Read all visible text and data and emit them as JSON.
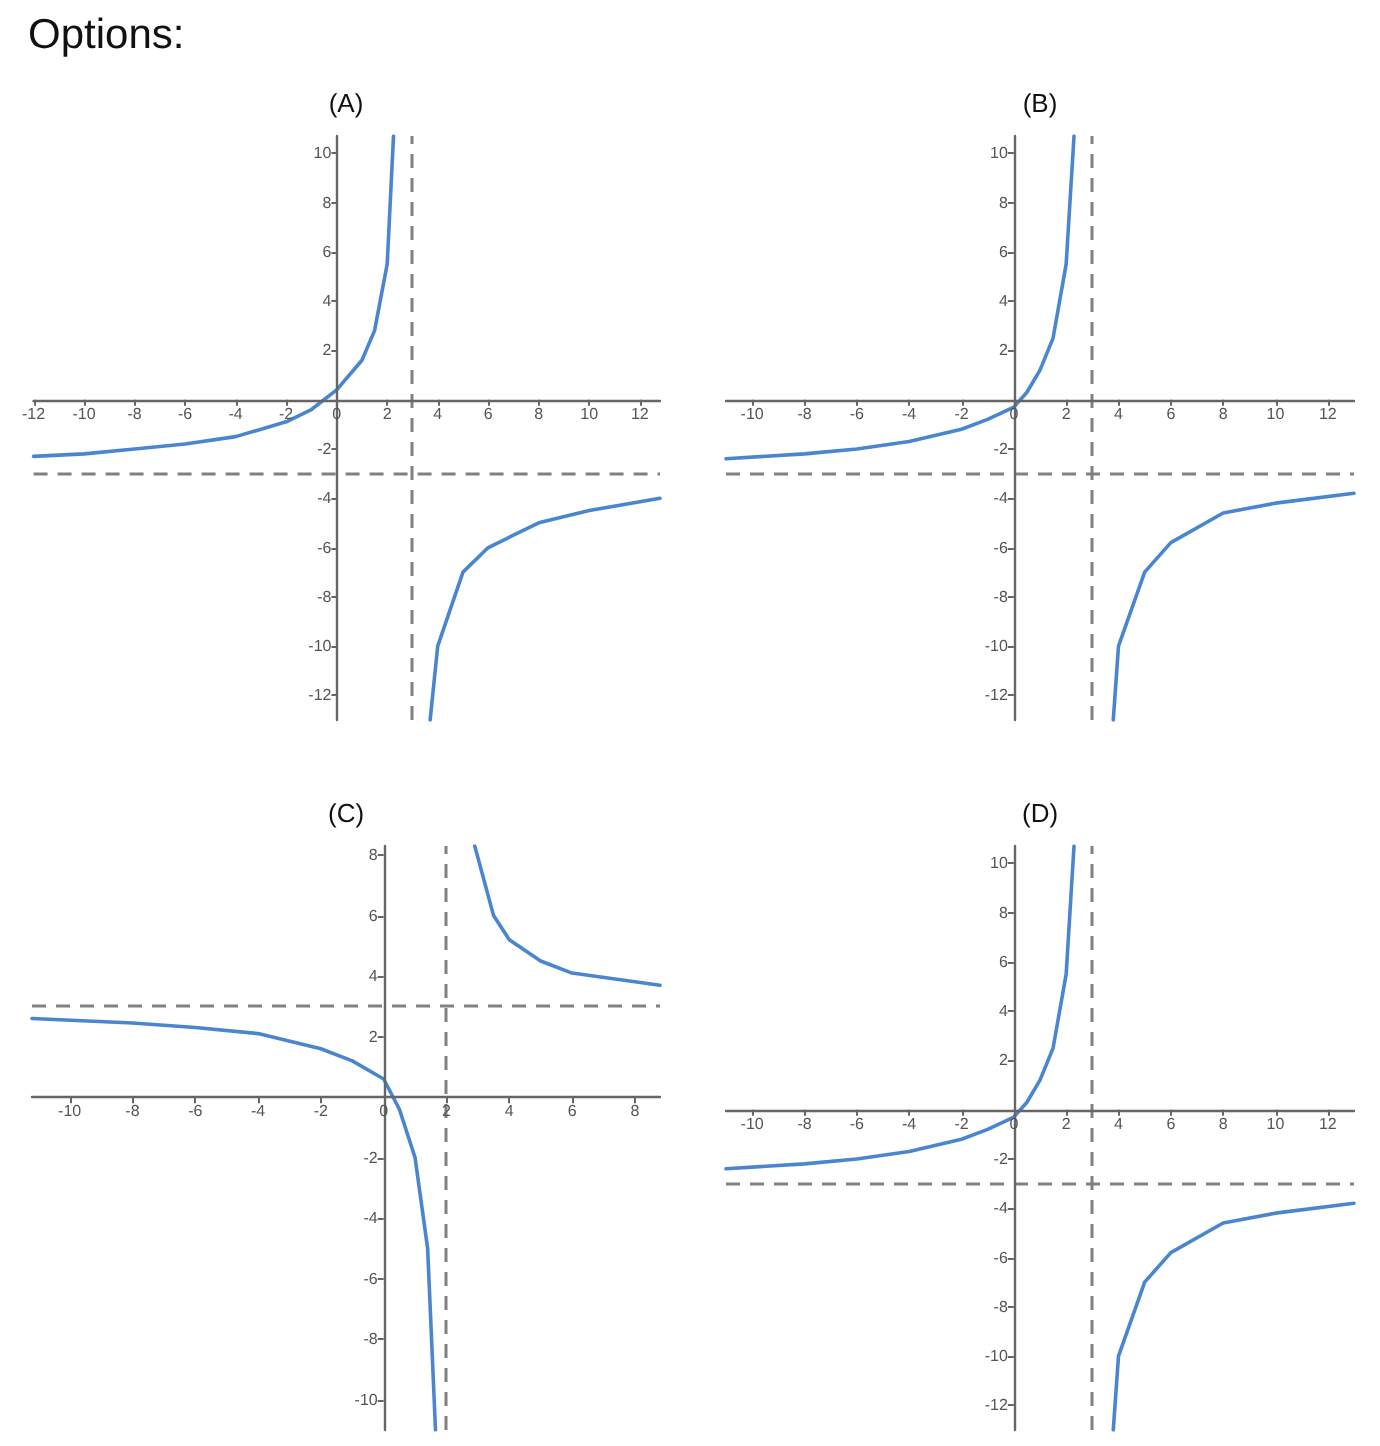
{
  "chart_data": [
    {
      "type": "line",
      "title": "(A)",
      "annotations": [
        "Options:"
      ],
      "marker": "none",
      "line_style": "solid",
      "xlim": [
        -12,
        12.8
      ],
      "xticks": [
        -12,
        -10,
        -8,
        -6,
        -4,
        -2,
        0,
        2,
        4,
        6,
        8,
        10,
        12
      ],
      "ylim": [
        -13,
        10.7
      ],
      "yticks": [
        -12,
        -10,
        -8,
        -6,
        -4,
        -2,
        2,
        4,
        6,
        8,
        10
      ],
      "ref_lines": [
        {
          "axis": "x",
          "value": 3,
          "color": "#808080",
          "line_style": "dashed"
        },
        {
          "axis": "y",
          "value": -3,
          "color": "#808080",
          "line_style": "dashed"
        }
      ],
      "series": [
        {
          "color": "#4a86d0",
          "x": [
            -12,
            -10,
            -8,
            -6,
            -4,
            -2,
            -1,
            0,
            1,
            1.5,
            2,
            2.25,
            3,
            3.7,
            4,
            5,
            6,
            8,
            10,
            12.8
          ],
          "values": [
            -2.3,
            -2.2,
            -2,
            -1.8,
            -1.5,
            -0.9,
            -0.4,
            0.4,
            1.6,
            2.8,
            5.5,
            10.7,
            null,
            -13,
            -10,
            -7,
            -6,
            -5,
            -4.5,
            -4
          ]
        }
      ]
    },
    {
      "type": "line",
      "title": "(B)",
      "marker": "none",
      "line_style": "solid",
      "xlim": [
        -11,
        13
      ],
      "xticks": [
        -10,
        -8,
        -6,
        -4,
        -2,
        0,
        2,
        4,
        6,
        8,
        10,
        12
      ],
      "ylim": [
        -13,
        10.7
      ],
      "yticks": [
        -12,
        -10,
        -8,
        -6,
        -4,
        -2,
        2,
        4,
        6,
        8,
        10
      ],
      "ref_lines": [
        {
          "axis": "x",
          "value": 3,
          "color": "#808080",
          "line_style": "dashed"
        },
        {
          "axis": "y",
          "value": -3,
          "color": "#808080",
          "line_style": "dashed"
        }
      ],
      "series": [
        {
          "color": "#4a86d0",
          "x": [
            -11,
            -8,
            -6,
            -4,
            -2,
            -1,
            0,
            0.5,
            1,
            1.5,
            2,
            2.3,
            3,
            3.8,
            4,
            5,
            6,
            8,
            10,
            13
          ],
          "values": [
            -2.4,
            -2.2,
            -2,
            -1.7,
            -1.2,
            -0.8,
            -0.3,
            0.3,
            1.2,
            2.5,
            5.5,
            10.7,
            null,
            -13,
            -10,
            -7,
            -5.8,
            -4.6,
            -4.2,
            -3.8
          ]
        }
      ]
    },
    {
      "type": "line",
      "title": "(C)",
      "marker": "none",
      "line_style": "solid",
      "xlim": [
        -11.2,
        8.8
      ],
      "xticks": [
        -10,
        -8,
        -6,
        -4,
        -2,
        0,
        2,
        4,
        6,
        8
      ],
      "ylim": [
        -11,
        8.3
      ],
      "yticks": [
        -10,
        -8,
        -6,
        -4,
        -2,
        2,
        4,
        6,
        8
      ],
      "ref_lines": [
        {
          "axis": "x",
          "value": 2,
          "color": "#808080",
          "line_style": "dashed"
        },
        {
          "axis": "y",
          "value": 3,
          "color": "#808080",
          "line_style": "dashed"
        }
      ],
      "series": [
        {
          "color": "#4a86d0",
          "x": [
            -11.2,
            -8,
            -6,
            -4,
            -2,
            -1,
            0,
            0.5,
            1,
            1.4,
            1.65,
            2,
            2.9,
            3.5,
            4,
            5,
            6,
            8.8
          ],
          "values": [
            2.6,
            2.45,
            2.3,
            2.1,
            1.6,
            1.2,
            0.6,
            -0.4,
            -2,
            -5,
            -11,
            null,
            8.3,
            6,
            5.2,
            4.5,
            4.1,
            3.7
          ]
        }
      ]
    },
    {
      "type": "line",
      "title": "(D)",
      "marker": "none",
      "line_style": "solid",
      "xlim": [
        -11,
        13
      ],
      "xticks": [
        -10,
        -8,
        -6,
        -4,
        -2,
        0,
        2,
        4,
        6,
        8,
        10,
        12
      ],
      "ylim": [
        -13,
        10.7
      ],
      "yticks": [
        -12,
        -10,
        -8,
        -6,
        -4,
        -2,
        2,
        4,
        6,
        8,
        10
      ],
      "ref_lines": [
        {
          "axis": "x",
          "value": 3,
          "color": "#808080",
          "line_style": "dashed"
        },
        {
          "axis": "y",
          "value": -3,
          "color": "#808080",
          "line_style": "dashed"
        }
      ],
      "series": [
        {
          "color": "#4a86d0",
          "x": [
            -11,
            -8,
            -6,
            -4,
            -2,
            -1,
            0,
            0.5,
            1,
            1.5,
            2,
            2.3,
            3,
            3.8,
            4,
            5,
            6,
            8,
            10,
            13
          ],
          "values": [
            -2.4,
            -2.2,
            -2,
            -1.7,
            -1.2,
            -0.8,
            -0.3,
            0.3,
            1.2,
            2.5,
            5.5,
            10.7,
            null,
            -13,
            -10,
            -7,
            -5.8,
            -4.6,
            -4.2,
            -3.8
          ]
        }
      ]
    }
  ]
}
